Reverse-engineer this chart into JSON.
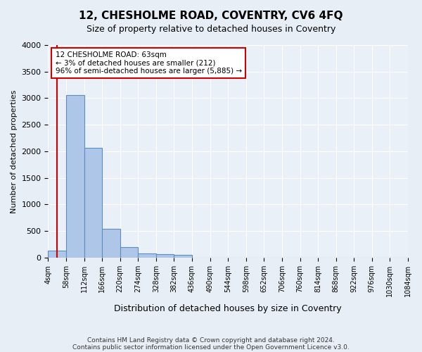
{
  "title": "12, CHESHOLME ROAD, COVENTRY, CV6 4FQ",
  "subtitle": "Size of property relative to detached houses in Coventry",
  "xlabel": "Distribution of detached houses by size in Coventry",
  "ylabel": "Number of detached properties",
  "bin_labels": [
    "4sqm",
    "58sqm",
    "112sqm",
    "166sqm",
    "220sqm",
    "274sqm",
    "328sqm",
    "382sqm",
    "436sqm",
    "490sqm",
    "544sqm",
    "598sqm",
    "652sqm",
    "706sqm",
    "760sqm",
    "814sqm",
    "868sqm",
    "922sqm",
    "976sqm",
    "1030sqm",
    "1084sqm"
  ],
  "bar_heights": [
    130,
    3060,
    2060,
    540,
    200,
    80,
    60,
    50,
    0,
    0,
    0,
    0,
    0,
    0,
    0,
    0,
    0,
    0,
    0,
    0
  ],
  "bar_color": "#aec6e8",
  "bar_edge_color": "#5a8fc0",
  "property_line_x": 0.5,
  "property_line_color": "#cc0000",
  "annotation_text": "12 CHESHOLME ROAD: 63sqm\n← 3% of detached houses are smaller (212)\n96% of semi-detached houses are larger (5,885) →",
  "annotation_box_color": "#cc0000",
  "ylim": [
    0,
    4000
  ],
  "yticks": [
    0,
    500,
    1000,
    1500,
    2000,
    2500,
    3000,
    3500,
    4000
  ],
  "footer_line1": "Contains HM Land Registry data © Crown copyright and database right 2024.",
  "footer_line2": "Contains public sector information licensed under the Open Government Licence v3.0.",
  "bg_color": "#e8eef5",
  "plot_bg_color": "#eaf0f8"
}
